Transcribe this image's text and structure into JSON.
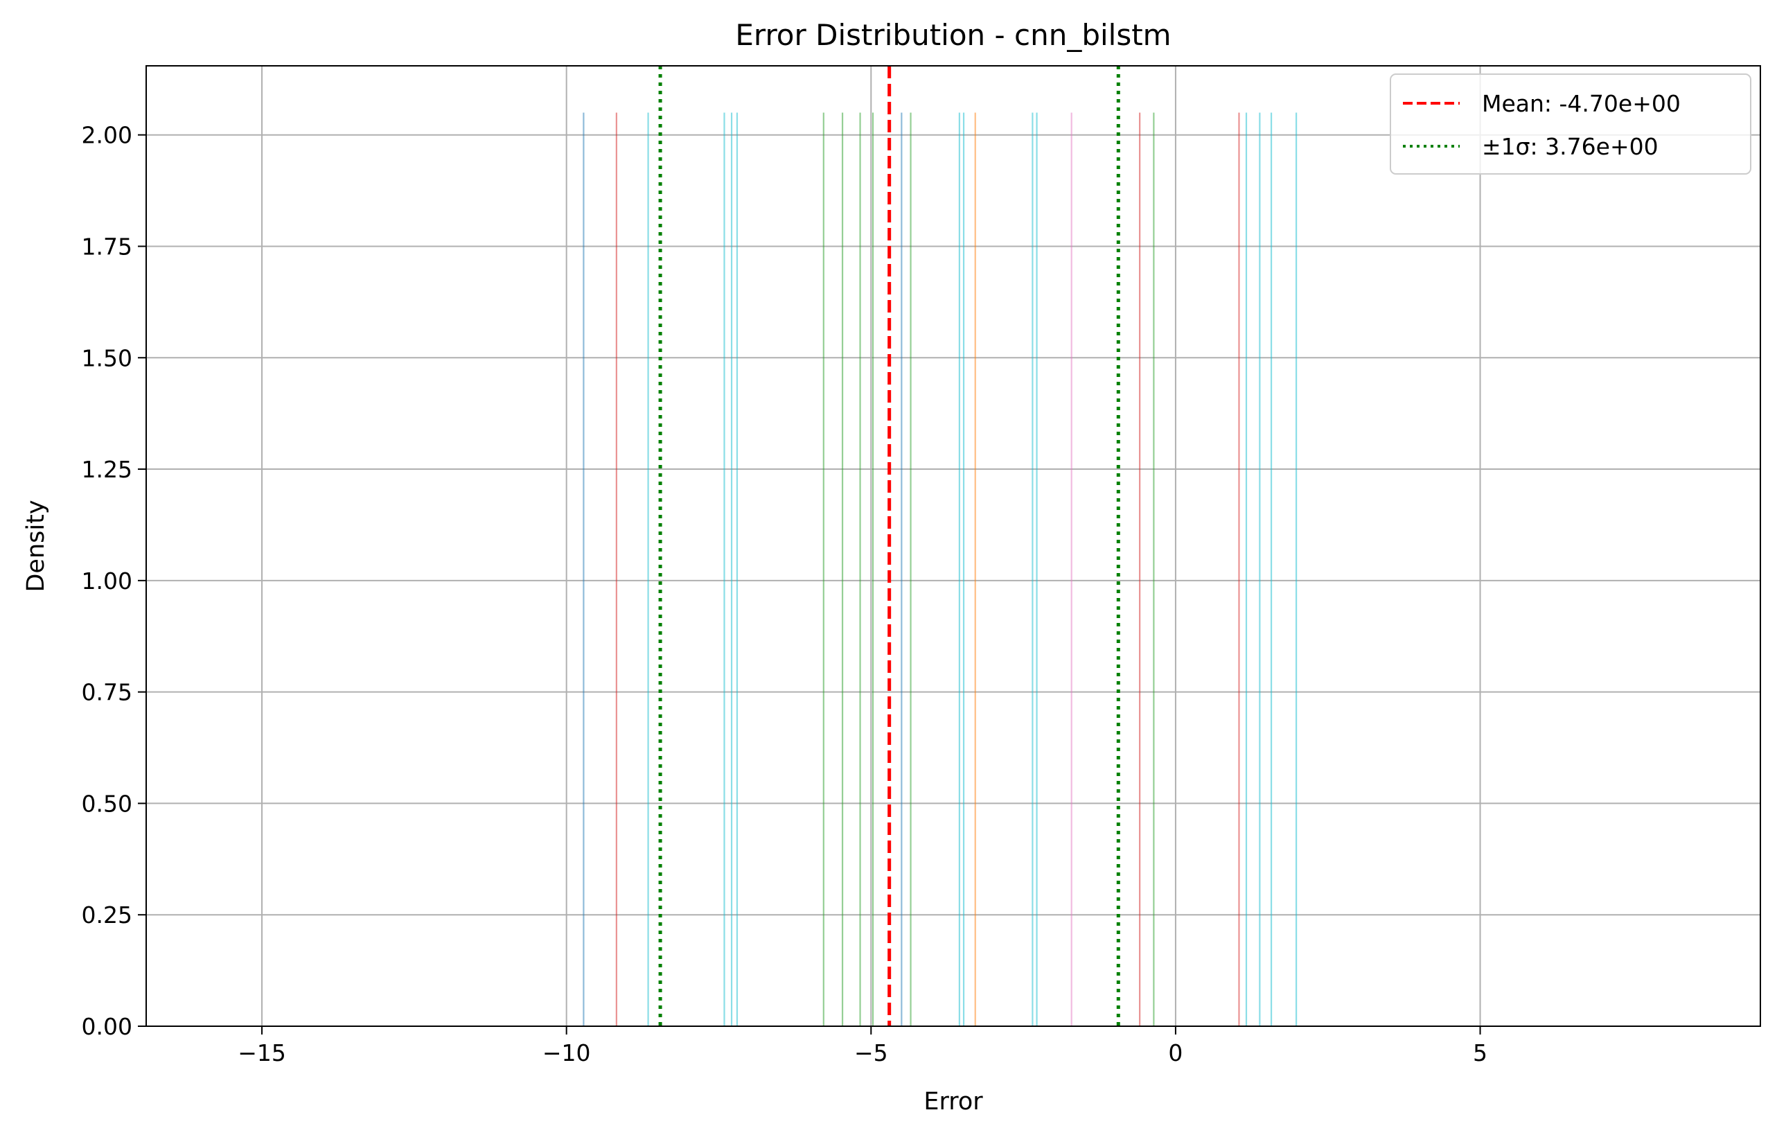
{
  "chart_data": {
    "type": "bar",
    "title": "Error Distribution - cnn_bilstm",
    "xlabel": "Error",
    "ylabel": "Density",
    "xlim": [
      -16.9,
      9.6
    ],
    "ylim": [
      0,
      2.155
    ],
    "xticks": [
      {
        "value": -15,
        "label": "−15"
      },
      {
        "value": -10,
        "label": "−10"
      },
      {
        "value": -5,
        "label": "−5"
      },
      {
        "value": 0,
        "label": "0"
      },
      {
        "value": 5,
        "label": "5"
      }
    ],
    "yticks": [
      {
        "value": 0,
        "label": "0.00"
      },
      {
        "value": 0.25,
        "label": "0.25"
      },
      {
        "value": 0.5,
        "label": "0.50"
      },
      {
        "value": 0.75,
        "label": "0.75"
      },
      {
        "value": 1.0,
        "label": "1.00"
      },
      {
        "value": 1.25,
        "label": "1.25"
      },
      {
        "value": 1.5,
        "label": "1.50"
      },
      {
        "value": 1.75,
        "label": "1.75"
      },
      {
        "value": 2.0,
        "label": "2.00"
      }
    ],
    "grid": true,
    "legend_position": "top-right",
    "bars": [
      {
        "x": -9.72,
        "density": 2.05,
        "color": "#1f77b4"
      },
      {
        "x": -9.18,
        "density": 2.05,
        "color": "#d62728"
      },
      {
        "x": -8.66,
        "density": 2.05,
        "color": "#17becf"
      },
      {
        "x": -7.41,
        "density": 2.05,
        "color": "#17becf"
      },
      {
        "x": -7.29,
        "density": 2.05,
        "color": "#17becf"
      },
      {
        "x": -7.2,
        "density": 2.05,
        "color": "#17becf"
      },
      {
        "x": -5.78,
        "density": 2.05,
        "color": "#2ca02c"
      },
      {
        "x": -5.47,
        "density": 2.05,
        "color": "#2ca02c"
      },
      {
        "x": -5.18,
        "density": 2.05,
        "color": "#2ca02c"
      },
      {
        "x": -4.97,
        "density": 2.05,
        "color": "#2ca02c"
      },
      {
        "x": -4.5,
        "density": 2.05,
        "color": "#1f77b4"
      },
      {
        "x": -4.35,
        "density": 2.05,
        "color": "#2ca02c"
      },
      {
        "x": -3.55,
        "density": 2.05,
        "color": "#17becf"
      },
      {
        "x": -3.48,
        "density": 2.05,
        "color": "#17becf"
      },
      {
        "x": -3.29,
        "density": 2.05,
        "color": "#ff7f0e"
      },
      {
        "x": -2.35,
        "density": 2.05,
        "color": "#17becf"
      },
      {
        "x": -2.28,
        "density": 2.05,
        "color": "#17becf"
      },
      {
        "x": -1.71,
        "density": 2.05,
        "color": "#e377c2"
      },
      {
        "x": -0.59,
        "density": 2.05,
        "color": "#d62728"
      },
      {
        "x": -0.36,
        "density": 2.05,
        "color": "#2ca02c"
      },
      {
        "x": 1.04,
        "density": 2.05,
        "color": "#d62728"
      },
      {
        "x": 1.16,
        "density": 2.05,
        "color": "#17becf"
      },
      {
        "x": 1.38,
        "density": 2.05,
        "color": "#17becf"
      },
      {
        "x": 1.57,
        "density": 2.05,
        "color": "#17becf"
      },
      {
        "x": 1.98,
        "density": 2.05,
        "color": "#17becf"
      }
    ],
    "mean": {
      "value": -4.7,
      "color": "#ff0000",
      "label": "Mean: -4.70e+00"
    },
    "sigma": {
      "value": 3.76,
      "lines": [
        -8.46,
        -0.94
      ],
      "color": "#008000",
      "label": "±1σ: 3.76e+00"
    }
  }
}
